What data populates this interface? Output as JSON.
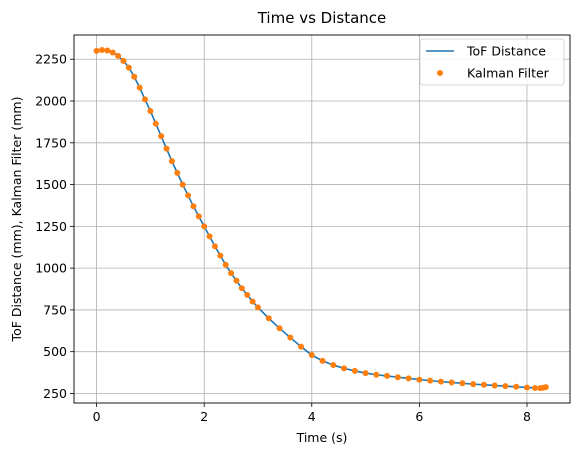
{
  "chart_data": {
    "type": "line",
    "title": "Time vs Distance",
    "xlabel": "Time (s)",
    "ylabel": "ToF Distance (mm), Kalman Filter (mm)",
    "xlim": [
      -0.42,
      8.8
    ],
    "ylim": [
      193,
      2395
    ],
    "xticks": [
      0,
      2,
      4,
      6,
      8
    ],
    "xtick_labels": [
      "0",
      "2",
      "4",
      "6",
      "8"
    ],
    "yticks": [
      250,
      500,
      750,
      1000,
      1250,
      1500,
      1750,
      2000,
      2250
    ],
    "ytick_labels": [
      "250",
      "500",
      "750",
      "1000",
      "1250",
      "1500",
      "1750",
      "2000",
      "2250"
    ],
    "grid": true,
    "legend_position": "top-right",
    "series": [
      {
        "name": "ToF Distance",
        "style": "line",
        "color": "#1f77b4",
        "x": [
          0.0,
          0.1,
          0.2,
          0.3,
          0.4,
          0.5,
          0.6,
          0.7,
          0.8,
          0.9,
          1.0,
          1.1,
          1.2,
          1.3,
          1.4,
          1.5,
          1.6,
          1.7,
          1.8,
          1.9,
          2.0,
          2.1,
          2.2,
          2.3,
          2.4,
          2.5,
          2.6,
          2.7,
          2.8,
          2.9,
          3.0,
          3.2,
          3.4,
          3.6,
          3.8,
          4.0,
          4.2,
          4.4,
          4.6,
          4.8,
          5.0,
          5.2,
          5.4,
          5.6,
          5.8,
          6.0,
          6.2,
          6.4,
          6.6,
          6.8,
          7.0,
          7.2,
          7.4,
          7.6,
          7.8,
          8.0,
          8.15,
          8.25,
          8.3,
          8.35
        ],
        "y": [
          2300,
          2305,
          2302,
          2290,
          2270,
          2240,
          2200,
          2145,
          2080,
          2010,
          1940,
          1865,
          1790,
          1715,
          1640,
          1570,
          1500,
          1435,
          1370,
          1310,
          1250,
          1190,
          1130,
          1075,
          1020,
          970,
          925,
          880,
          840,
          800,
          765,
          700,
          640,
          585,
          530,
          480,
          445,
          420,
          400,
          385,
          372,
          362,
          355,
          347,
          340,
          333,
          327,
          321,
          316,
          311,
          306,
          302,
          298,
          294,
          290,
          286,
          283,
          282,
          284,
          288
        ]
      },
      {
        "name": "Kalman Filter",
        "style": "markers",
        "color": "#ff7f0e",
        "x": [
          0.0,
          0.1,
          0.2,
          0.3,
          0.4,
          0.5,
          0.6,
          0.7,
          0.8,
          0.9,
          1.0,
          1.1,
          1.2,
          1.3,
          1.4,
          1.5,
          1.6,
          1.7,
          1.8,
          1.9,
          2.0,
          2.1,
          2.2,
          2.3,
          2.4,
          2.5,
          2.6,
          2.7,
          2.8,
          2.9,
          3.0,
          3.2,
          3.4,
          3.6,
          3.8,
          4.0,
          4.2,
          4.4,
          4.6,
          4.8,
          5.0,
          5.2,
          5.4,
          5.6,
          5.8,
          6.0,
          6.2,
          6.4,
          6.6,
          6.8,
          7.0,
          7.2,
          7.4,
          7.6,
          7.8,
          8.0,
          8.15,
          8.25,
          8.3,
          8.35
        ],
        "y": [
          2300,
          2305,
          2302,
          2290,
          2270,
          2240,
          2200,
          2145,
          2080,
          2010,
          1940,
          1865,
          1790,
          1715,
          1640,
          1570,
          1500,
          1435,
          1370,
          1310,
          1250,
          1190,
          1130,
          1075,
          1020,
          970,
          925,
          880,
          840,
          800,
          765,
          700,
          640,
          585,
          530,
          480,
          445,
          420,
          400,
          385,
          372,
          362,
          355,
          347,
          340,
          333,
          327,
          321,
          316,
          311,
          306,
          302,
          298,
          294,
          290,
          286,
          283,
          282,
          284,
          288
        ]
      }
    ]
  }
}
